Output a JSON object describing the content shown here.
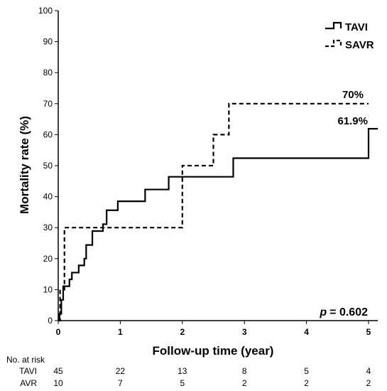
{
  "chart_data": {
    "type": "line",
    "subtype": "kaplan-meier-step",
    "xlabel": "Follow-up time (year)",
    "ylabel": "Mortality rate (%)",
    "xlim": [
      0,
      5.15
    ],
    "ylim": [
      0,
      100
    ],
    "x_ticks": [
      "0",
      "1",
      "2",
      "3",
      "4",
      "5"
    ],
    "y_ticks": [
      "0",
      "10",
      "20",
      "30",
      "40",
      "50",
      "60",
      "70",
      "80",
      "90",
      "100"
    ],
    "grid": false,
    "legend_position": "top-right",
    "series": [
      {
        "name": "TAVI",
        "line_style": "solid",
        "end_label": "61.9%",
        "points": [
          [
            0,
            0
          ],
          [
            0.02,
            2.2
          ],
          [
            0.05,
            6.7
          ],
          [
            0.08,
            11.1
          ],
          [
            0.18,
            13.3
          ],
          [
            0.22,
            15.5
          ],
          [
            0.33,
            17.8
          ],
          [
            0.42,
            20.0
          ],
          [
            0.45,
            24.4
          ],
          [
            0.55,
            28.9
          ],
          [
            0.72,
            31.1
          ],
          [
            0.78,
            35.6
          ],
          [
            0.96,
            38.5
          ],
          [
            1.4,
            42.3
          ],
          [
            1.78,
            46.4
          ],
          [
            2.82,
            52.4
          ],
          [
            5.0,
            61.9
          ],
          [
            5.15,
            61.9
          ]
        ]
      },
      {
        "name": "SAVR",
        "line_style": "dashed",
        "end_label": "70%",
        "points": [
          [
            0,
            0
          ],
          [
            0.03,
            10.0
          ],
          [
            0.1,
            30.0
          ],
          [
            2.0,
            50.0
          ],
          [
            2.5,
            60.0
          ],
          [
            2.75,
            70.0
          ],
          [
            5.0,
            70.0
          ]
        ]
      }
    ],
    "annotation": {
      "p_label": "p",
      "p_value": "= 0.602"
    },
    "risk_table": {
      "title": "No. at risk",
      "x_positions": [
        0,
        1,
        2,
        3,
        4,
        5
      ],
      "rows": [
        {
          "label": "TAVI",
          "values": [
            "45",
            "22",
            "13",
            "8",
            "5",
            "4"
          ]
        },
        {
          "label": "AVR",
          "values": [
            "10",
            "7",
            "5",
            "2",
            "2",
            "2"
          ]
        }
      ]
    }
  }
}
